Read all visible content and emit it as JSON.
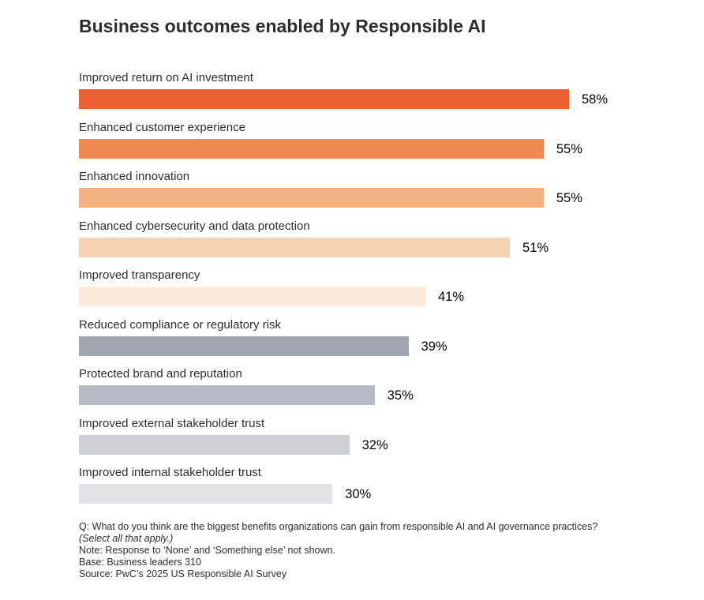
{
  "chart_data": {
    "type": "bar",
    "orientation": "horizontal",
    "title": "Business outcomes enabled by Responsible AI",
    "xlabel": "",
    "ylabel": "",
    "xlim": [
      0,
      58
    ],
    "value_suffix": "%",
    "categories": [
      "Improved return on AI investment",
      "Enhanced customer experience",
      "Enhanced innovation",
      "Enhanced cybersecurity and data protection",
      "Improved transparency",
      "Reduced compliance or regulatory risk",
      "Protected brand and reputation",
      "Improved external stakeholder trust",
      "Improved internal stakeholder trust"
    ],
    "values": [
      58,
      55,
      55,
      51,
      41,
      39,
      35,
      32,
      30
    ],
    "colors": [
      "#ec5f30",
      "#ee8850",
      "#f2b282",
      "#f7d3b4",
      "#fbeadb",
      "#a1a7b0",
      "#b7bcc4",
      "#cdd1d6",
      "#e1e3e6"
    ]
  },
  "notes": {
    "question": "Q: What do you think are the biggest benefits organizations can gain from responsible AI and AI governance practices?",
    "select": "(Select all that apply.)",
    "note": "Note: Response to ‘None’ and ‘Something else’ not shown.",
    "base": "Base: Business leaders 310",
    "source": "Source: PwC’s 2025 US Responsible AI Survey"
  }
}
